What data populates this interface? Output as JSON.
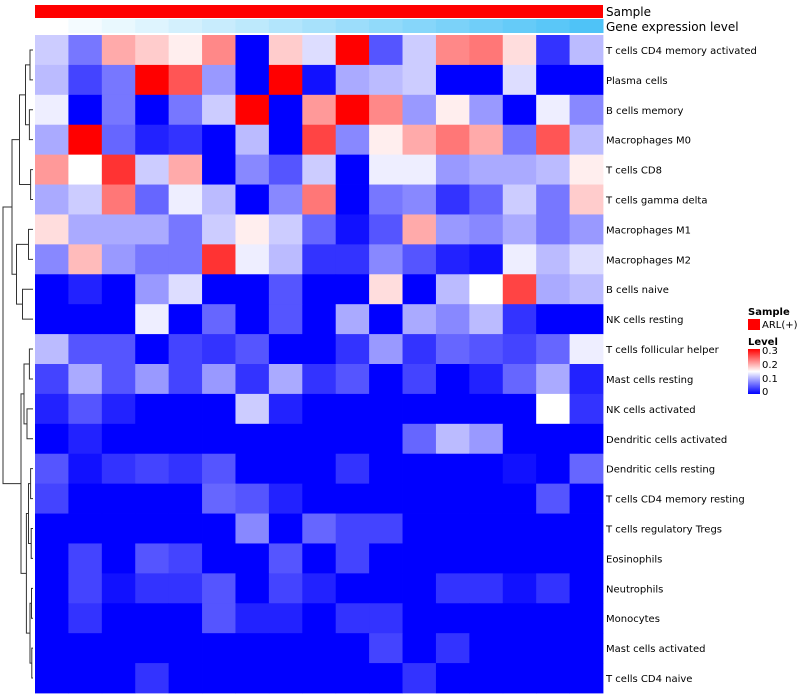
{
  "chart_data": {
    "type": "heatmap",
    "title": "",
    "annotation_tracks": [
      {
        "label": "Sample",
        "color": "#ff0000"
      },
      {
        "label": "Gene expression level",
        "gradient": [
          "#ffffff",
          "#4fc3f7"
        ]
      }
    ],
    "rows": [
      "T cells CD4 memory activated",
      "Plasma cells",
      "B cells memory",
      "Macrophages M0",
      "T cells CD8",
      "T cells gamma delta",
      "Macrophages M1",
      "Macrophages M2",
      "B cells naive",
      "NK cells resting",
      "T cells follicular helper",
      "Mast cells resting",
      "NK cells activated",
      "Dendritic cells activated",
      "Dendritic cells resting",
      "T cells CD4 memory resting",
      "T cells regulatory  Tregs",
      "Eosinophils",
      "Neutrophils",
      "Monocytes",
      "Mast cells activated",
      "T cells CD4 naive"
    ],
    "num_columns": 17,
    "values": [
      [
        0.12,
        0.07,
        0.2,
        0.18,
        0.16,
        0.22,
        0.0,
        0.18,
        0.13,
        0.3,
        0.05,
        0.12,
        0.22,
        0.23,
        0.17,
        0.03,
        0.11
      ],
      [
        0.11,
        0.04,
        0.07,
        0.3,
        0.25,
        0.09,
        0.0,
        0.3,
        0.01,
        0.1,
        0.11,
        0.12,
        0.0,
        0.0,
        0.13,
        0.0,
        0.0
      ],
      [
        0.14,
        0.0,
        0.07,
        0.0,
        0.07,
        0.12,
        0.3,
        0.0,
        0.21,
        0.3,
        0.22,
        0.09,
        0.16,
        0.09,
        0.0,
        0.14,
        0.08
      ],
      [
        0.1,
        0.3,
        0.06,
        0.02,
        0.03,
        0.0,
        0.11,
        0.0,
        0.26,
        0.08,
        0.16,
        0.2,
        0.23,
        0.2,
        0.07,
        0.25,
        0.11
      ],
      [
        0.21,
        0.15,
        0.27,
        0.12,
        0.2,
        0.0,
        0.08,
        0.05,
        0.12,
        0.0,
        0.14,
        0.14,
        0.09,
        0.1,
        0.1,
        0.11,
        0.16
      ],
      [
        0.1,
        0.12,
        0.23,
        0.06,
        0.14,
        0.11,
        0.0,
        0.08,
        0.23,
        0.0,
        0.07,
        0.08,
        0.03,
        0.06,
        0.12,
        0.07,
        0.18
      ],
      [
        0.17,
        0.1,
        0.1,
        0.1,
        0.07,
        0.12,
        0.16,
        0.12,
        0.06,
        0.01,
        0.05,
        0.2,
        0.09,
        0.08,
        0.1,
        0.07,
        0.09
      ],
      [
        0.08,
        0.19,
        0.09,
        0.07,
        0.07,
        0.27,
        0.14,
        0.11,
        0.03,
        0.03,
        0.08,
        0.05,
        0.02,
        0.01,
        0.14,
        0.11,
        0.13
      ],
      [
        0.0,
        0.02,
        0.0,
        0.09,
        0.13,
        0.0,
        0.0,
        0.05,
        0.0,
        0.0,
        0.17,
        0.0,
        0.11,
        0.15,
        0.26,
        0.1,
        0.11
      ],
      [
        0.0,
        0.0,
        0.0,
        0.14,
        0.0,
        0.06,
        0.0,
        0.05,
        0.0,
        0.1,
        0.0,
        0.1,
        0.08,
        0.11,
        0.03,
        0.0,
        0.0
      ],
      [
        0.11,
        0.05,
        0.05,
        0.0,
        0.04,
        0.03,
        0.05,
        0.0,
        0.0,
        0.03,
        0.09,
        0.03,
        0.06,
        0.05,
        0.04,
        0.06,
        0.14
      ],
      [
        0.04,
        0.1,
        0.05,
        0.09,
        0.04,
        0.09,
        0.03,
        0.1,
        0.03,
        0.05,
        0.0,
        0.04,
        0.0,
        0.02,
        0.06,
        0.1,
        0.02
      ],
      [
        0.02,
        0.05,
        0.02,
        0.0,
        0.0,
        0.0,
        0.12,
        0.02,
        0.0,
        0.0,
        0.0,
        0.0,
        0.0,
        0.0,
        0.0,
        0.15,
        0.03
      ],
      [
        0.0,
        0.02,
        0.0,
        0.0,
        0.0,
        0.0,
        0.0,
        0.0,
        0.0,
        0.0,
        0.0,
        0.06,
        0.11,
        0.09,
        0.0,
        0.0,
        0.0
      ],
      [
        0.05,
        0.01,
        0.03,
        0.04,
        0.03,
        0.05,
        0.0,
        0.0,
        0.0,
        0.03,
        0.0,
        0.0,
        0.0,
        0.0,
        0.01,
        0.0,
        0.06
      ],
      [
        0.04,
        0.0,
        0.0,
        0.0,
        0.0,
        0.06,
        0.05,
        0.02,
        0.0,
        0.0,
        0.0,
        0.0,
        0.0,
        0.0,
        0.0,
        0.05,
        0.0
      ],
      [
        0.0,
        0.0,
        0.0,
        0.0,
        0.0,
        0.0,
        0.08,
        0.0,
        0.06,
        0.04,
        0.04,
        0.0,
        0.0,
        0.0,
        0.0,
        0.0,
        0.0
      ],
      [
        0.0,
        0.04,
        0.0,
        0.05,
        0.04,
        0.0,
        0.0,
        0.05,
        0.0,
        0.04,
        0.0,
        0.0,
        0.0,
        0.0,
        0.0,
        0.0,
        0.0
      ],
      [
        0.0,
        0.04,
        0.01,
        0.03,
        0.03,
        0.05,
        0.0,
        0.04,
        0.02,
        0.0,
        0.0,
        0.0,
        0.03,
        0.03,
        0.01,
        0.03,
        0.0
      ],
      [
        0.0,
        0.03,
        0.0,
        0.0,
        0.0,
        0.05,
        0.02,
        0.02,
        0.0,
        0.03,
        0.03,
        0.0,
        0.0,
        0.0,
        0.0,
        0.0,
        0.0
      ],
      [
        0.0,
        0.0,
        0.0,
        0.0,
        0.0,
        0.0,
        0.0,
        0.0,
        0.0,
        0.0,
        0.04,
        0.0,
        0.03,
        0.0,
        0.0,
        0.0,
        0.0
      ],
      [
        0.0,
        0.0,
        0.0,
        0.03,
        0.0,
        0.0,
        0.0,
        0.0,
        0.0,
        0.0,
        0.0,
        0.03,
        0.0,
        0.0,
        0.0,
        0.0,
        0.0
      ]
    ],
    "color_scale": {
      "min": 0,
      "max": 0.3,
      "low": "#0000ff",
      "mid": "#ffffff",
      "high": "#ff0000",
      "midpoint": 0.15
    },
    "legend": {
      "sample_title": "Sample",
      "sample_entry": "ARL(+)",
      "level_title": "Level",
      "ticks": [
        "0.3",
        "0.2",
        "0.1",
        "0"
      ],
      "placement": "right"
    }
  }
}
